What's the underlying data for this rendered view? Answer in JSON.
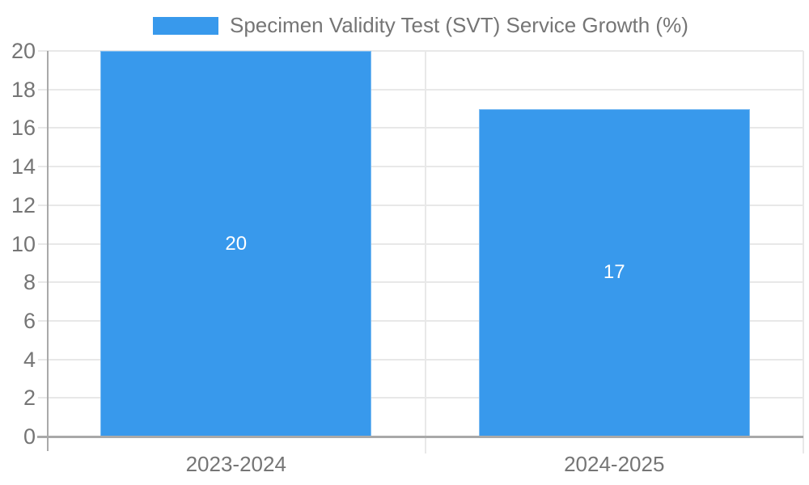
{
  "chart_data": {
    "type": "bar",
    "title": "",
    "series_name": "Specimen Validity Test (SVT) Service Growth (%)",
    "categories": [
      "2023-2024",
      "2024-2025"
    ],
    "values": [
      20,
      17
    ],
    "bar_labels": [
      "20",
      "17"
    ],
    "xlabel": "",
    "ylabel": "",
    "ylim": [
      0,
      20
    ],
    "ytick_step": 2,
    "ytick_labels": [
      "0",
      "2",
      "4",
      "6",
      "8",
      "10",
      "12",
      "14",
      "16",
      "18",
      "20"
    ],
    "grid": true,
    "legend_position": "top-center",
    "bar_label_position": "center-inside",
    "colors": {
      "bar": "#3899ec",
      "bar_label": "#ffffff",
      "axis_text": "#757575",
      "gridline": "#e8e8e8",
      "axis_line": "#a9a9a9",
      "background": "#ffffff"
    }
  }
}
